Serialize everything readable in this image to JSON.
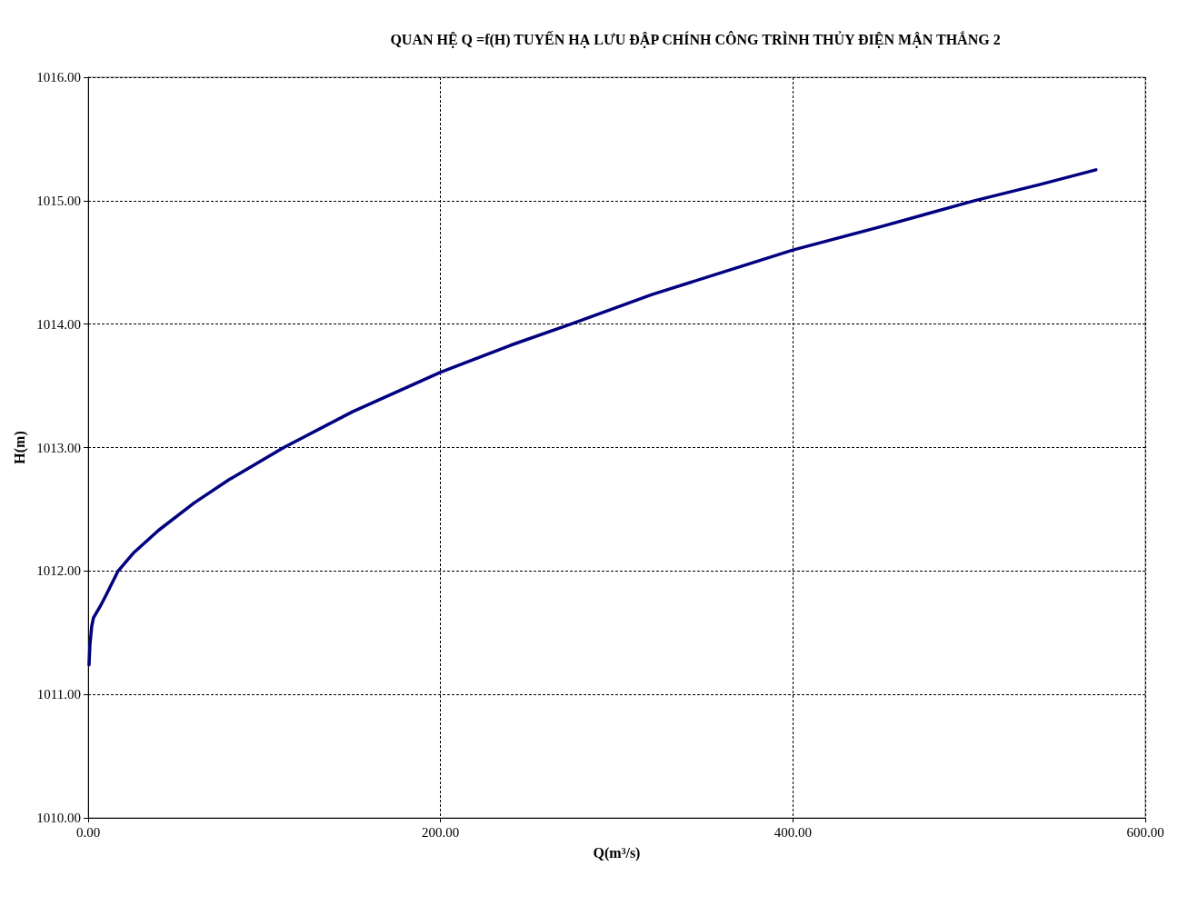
{
  "chart_data": {
    "type": "line",
    "title": "QUAN HỆ Q =f(H) TUYẾN HẠ LƯU ĐẬP CHÍNH CÔNG TRÌNH THỦY ĐIỆN MẬN THẮNG 2",
    "xlabel": "Q(m³/s)",
    "ylabel": "H(m)",
    "x": [
      0.5,
      1,
      2,
      3,
      6.7,
      10,
      17,
      26,
      40,
      60,
      80,
      111,
      150,
      200,
      240,
      274,
      320,
      360,
      400,
      450,
      503,
      540,
      572
    ],
    "series": [
      {
        "color": "#000080",
        "values": [
          1011.24,
          1011.4,
          1011.55,
          1011.62,
          1011.71,
          1011.8,
          1012.0,
          1012.15,
          1012.33,
          1012.55,
          1012.74,
          1013.0,
          1013.29,
          1013.61,
          1013.83,
          1014.0,
          1014.24,
          1014.42,
          1014.6,
          1014.79,
          1015.0,
          1015.13,
          1015.25
        ]
      }
    ],
    "xlim": [
      0,
      600
    ],
    "xticks": [
      {
        "value": 0,
        "label": "0.00"
      },
      {
        "value": 200,
        "label": "200.00"
      },
      {
        "value": 400,
        "label": "400.00"
      },
      {
        "value": 600,
        "label": "600.00"
      }
    ],
    "ylim": [
      1010,
      1016
    ],
    "yticks": [
      {
        "value": 1010,
        "label": "1010.00"
      },
      {
        "value": 1011,
        "label": "1011.00"
      },
      {
        "value": 1012,
        "label": "1012.00"
      },
      {
        "value": 1013,
        "label": "1013.00"
      },
      {
        "value": 1014,
        "label": "1014.00"
      },
      {
        "value": 1015,
        "label": "1015.00"
      },
      {
        "value": 1016,
        "label": "1016.00"
      }
    ],
    "grid": true,
    "marker": "none",
    "line_style": "solid"
  }
}
